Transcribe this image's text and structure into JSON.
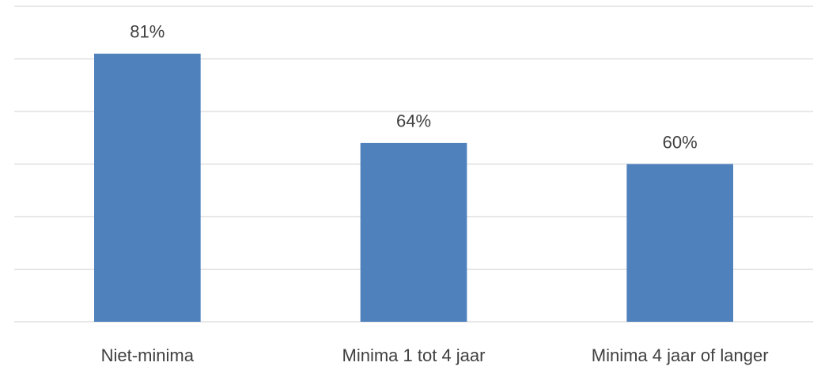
{
  "chart_data": {
    "type": "bar",
    "categories": [
      "Niet-minima",
      "Minima 1 tot 4 jaar",
      "Minima 4 jaar of langer"
    ],
    "values": [
      81,
      64,
      60
    ],
    "value_labels": [
      "81%",
      "64%",
      "60%"
    ],
    "color": "#4f81bd",
    "ylim": [
      30,
      90
    ],
    "yticks": [
      30,
      40,
      50,
      60,
      70,
      80,
      90
    ],
    "grid": true
  }
}
